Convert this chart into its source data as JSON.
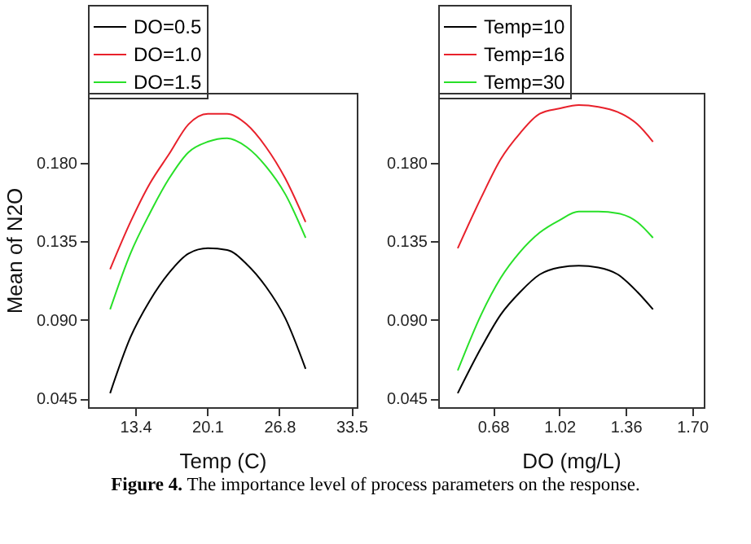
{
  "chart_data": [
    {
      "type": "line",
      "xlabel": "Temp (C)",
      "ylabel": "Mean of N2O",
      "legend": "top left",
      "x": [
        11.06,
        12.95,
        14.75,
        16.55,
        18.35,
        20.15,
        21.95,
        23.75,
        25.55,
        27.35,
        29.24
      ],
      "series": [
        {
          "name": "DO=0.5",
          "color": "#000000",
          "values": [
            0.048,
            0.08,
            0.101,
            0.117,
            0.128,
            0.131,
            0.13,
            0.122,
            0.109,
            0.091,
            0.062
          ]
        },
        {
          "name": "DO=1.0",
          "color": "#e8212b",
          "values": [
            0.119,
            0.146,
            0.168,
            0.185,
            0.202,
            0.208,
            0.208,
            0.202,
            0.189,
            0.171,
            0.146
          ]
        },
        {
          "name": "DO=1.5",
          "color": "#28e028",
          "values": [
            0.096,
            0.128,
            0.151,
            0.171,
            0.186,
            0.192,
            0.194,
            0.189,
            0.178,
            0.162,
            0.137
          ]
        }
      ],
      "xlim": [
        9,
        34
      ],
      "xticks": [
        13.4,
        20.1,
        26.8,
        33.5
      ],
      "ylim": [
        0.04,
        0.22
      ],
      "yticks": [
        {
          "value": 0.045,
          "label": "0.045"
        },
        {
          "value": 0.09,
          "label": "0.090"
        },
        {
          "value": 0.135,
          "label": "0.135"
        },
        {
          "value": 0.18,
          "label": "0.180"
        }
      ],
      "annotations": [
        "Figure 4. The importance level of process parameters on the response."
      ]
    },
    {
      "type": "line",
      "xlabel": "DO (mg/L)",
      "legend": "top left",
      "x": [
        0.5,
        0.62,
        0.72,
        0.82,
        0.92,
        1.02,
        1.12,
        1.22,
        1.32,
        1.42,
        1.5
      ],
      "series": [
        {
          "name": "Temp=10",
          "color": "#000000",
          "values": [
            0.048,
            0.074,
            0.093,
            0.106,
            0.116,
            0.12,
            0.121,
            0.12,
            0.116,
            0.106,
            0.096
          ]
        },
        {
          "name": "Temp=16",
          "color": "#e8212b",
          "values": [
            0.131,
            0.16,
            0.182,
            0.197,
            0.208,
            0.211,
            0.213,
            0.212,
            0.209,
            0.202,
            0.192
          ]
        },
        {
          "name": "Temp=30",
          "color": "#28e028",
          "values": [
            0.061,
            0.093,
            0.114,
            0.129,
            0.14,
            0.147,
            0.152,
            0.152,
            0.151,
            0.146,
            0.137
          ]
        }
      ],
      "xlim": [
        0.4,
        1.76
      ],
      "xticks": [
        0.68,
        1.02,
        1.36,
        {
          "value": 1.7,
          "label": "1.70"
        }
      ],
      "ylim": [
        0.04,
        0.22
      ],
      "yticks": [
        {
          "value": 0.045,
          "label": "0.045"
        },
        {
          "value": 0.09,
          "label": "0.090"
        },
        {
          "value": 0.135,
          "label": "0.135"
        },
        {
          "value": 0.18,
          "label": "0.180"
        }
      ]
    }
  ]
}
